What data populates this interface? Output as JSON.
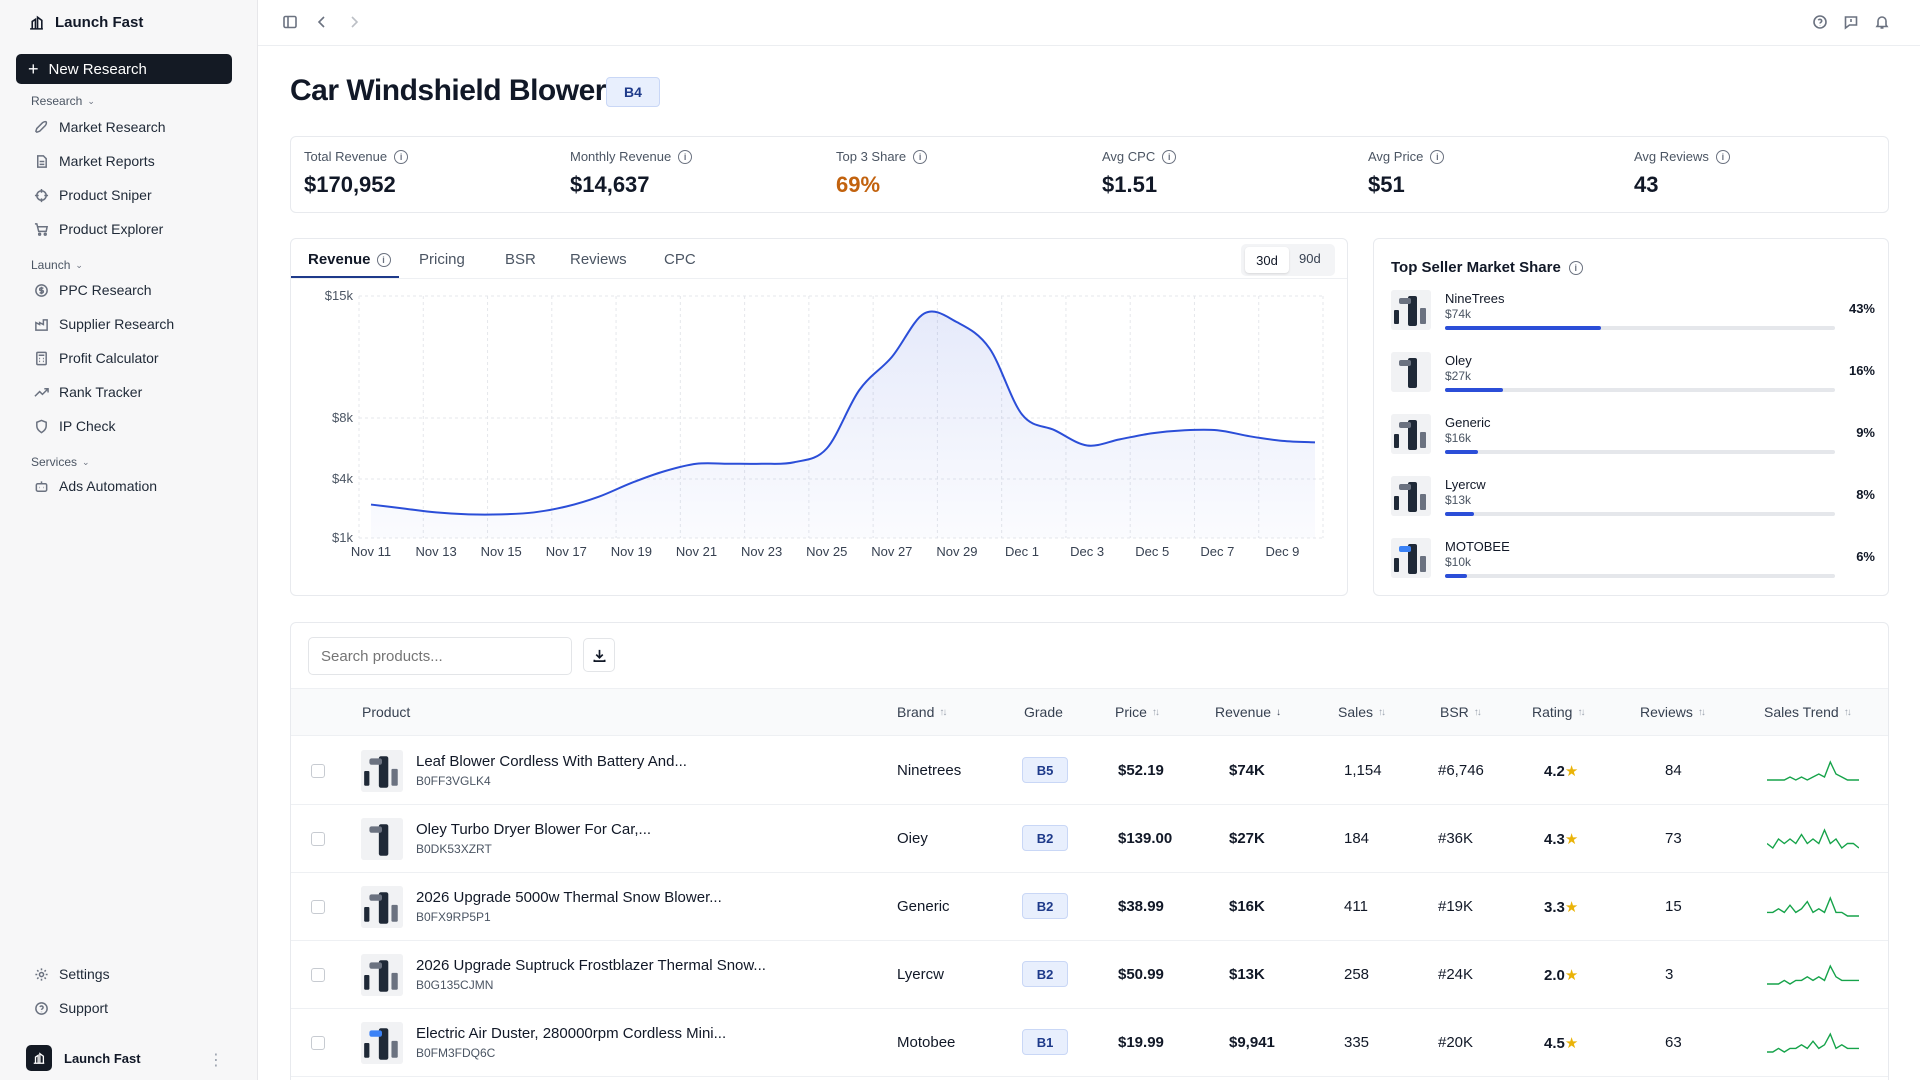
{
  "app": {
    "name": "Launch Fast"
  },
  "sidebar": {
    "new_research": "New Research",
    "sections": [
      {
        "label": "Research",
        "items": [
          "Market Research",
          "Market Reports",
          "Product Sniper",
          "Product Explorer"
        ]
      },
      {
        "label": "Launch",
        "items": [
          "PPC Research",
          "Supplier Research",
          "Profit Calculator",
          "Rank Tracker",
          "IP Check"
        ]
      },
      {
        "label": "Services",
        "items": [
          "Ads Automation"
        ]
      }
    ],
    "footer": [
      "Settings",
      "Support"
    ],
    "user": "Launch Fast"
  },
  "header": {
    "title": "Car Windshield Blower",
    "grade": "B4"
  },
  "metrics": [
    {
      "label": "Total Revenue",
      "value": "$170,952"
    },
    {
      "label": "Monthly Revenue",
      "value": "$14,637"
    },
    {
      "label": "Top 3 Share",
      "value": "69%",
      "color": "#c2620e"
    },
    {
      "label": "Avg CPC",
      "value": "$1.51"
    },
    {
      "label": "Avg Price",
      "value": "$51"
    },
    {
      "label": "Avg Reviews",
      "value": "43"
    }
  ],
  "chart_tabs": [
    "Revenue",
    "Pricing",
    "BSR",
    "Reviews",
    "CPC"
  ],
  "range": {
    "options": [
      "30d",
      "90d"
    ],
    "selected": "30d"
  },
  "chart_data": {
    "type": "area",
    "title": "",
    "xlabel": "",
    "ylabel": "",
    "y_ticks": [
      {
        "label": "$15k",
        "value": 15000
      },
      {
        "label": "$8k",
        "value": 8000
      },
      {
        "label": "$4k",
        "value": 4000
      },
      {
        "label": "$1k",
        "value": 1000
      }
    ],
    "x_tick_labels": [
      "Nov 11",
      "Nov 13",
      "Nov 15",
      "Nov 17",
      "Nov 19",
      "Nov 21",
      "Nov 23",
      "Nov 25",
      "Nov 27",
      "Nov 29",
      "Dec 1",
      "Dec 3",
      "Dec 5",
      "Dec 7",
      "Dec 9"
    ],
    "x": [
      "Nov 11",
      "Nov 12",
      "Nov 13",
      "Nov 14",
      "Nov 15",
      "Nov 16",
      "Nov 17",
      "Nov 18",
      "Nov 19",
      "Nov 20",
      "Nov 21",
      "Nov 22",
      "Nov 23",
      "Nov 24",
      "Nov 25",
      "Nov 26",
      "Nov 27",
      "Nov 28",
      "Nov 29",
      "Nov 30",
      "Dec 1",
      "Dec 2",
      "Dec 3",
      "Dec 4",
      "Dec 5",
      "Dec 6",
      "Dec 7",
      "Dec 8",
      "Dec 9",
      "Dec 10"
    ],
    "values": [
      2700,
      2500,
      2300,
      2200,
      2200,
      2300,
      2600,
      3100,
      3800,
      4500,
      5000,
      5000,
      5000,
      5100,
      6000,
      9600,
      11500,
      14000,
      13500,
      12000,
      8200,
      7200,
      6200,
      6600,
      7000,
      7200,
      7200,
      6800,
      6500,
      6400
    ],
    "color": "#2b4ed8",
    "grid": true
  },
  "top_sellers": {
    "title": "Top Seller Market Share",
    "items": [
      {
        "name": "NineTrees",
        "revenue": "$74k",
        "share_label": "43%",
        "share": 0.43
      },
      {
        "name": "Oley",
        "revenue": "$27k",
        "share_label": "16%",
        "share": 0.16
      },
      {
        "name": "Generic",
        "revenue": "$16k",
        "share_label": "9%",
        "share": 0.09
      },
      {
        "name": "Lyercw",
        "revenue": "$13k",
        "share_label": "8%",
        "share": 0.08
      },
      {
        "name": "MOTOBEE",
        "revenue": "$10k",
        "share_label": "6%",
        "share": 0.06
      }
    ]
  },
  "table": {
    "search_placeholder": "Search products...",
    "columns": [
      "Product",
      "Brand",
      "Grade",
      "Price",
      "Revenue",
      "Sales",
      "BSR",
      "Rating",
      "Reviews",
      "Sales Trend"
    ],
    "rows": [
      {
        "name": "Leaf Blower Cordless With Battery And...",
        "asin": "B0FF3VGLK4",
        "brand": "Ninetrees",
        "grade": "B5",
        "price": "$52.19",
        "revenue": "$74K",
        "sales": "1,154",
        "bsr": "#6,746",
        "rating": "4.2",
        "reviews": "84",
        "trend": [
          2,
          2,
          2,
          2,
          3,
          2,
          3,
          2,
          3,
          4,
          3,
          8,
          4,
          3,
          2,
          2,
          2
        ]
      },
      {
        "name": "Oley Turbo Dryer Blower For Car,...",
        "asin": "B0DK53XZRT",
        "brand": "Oiey",
        "grade": "B2",
        "price": "$139.00",
        "revenue": "$27K",
        "sales": "184",
        "bsr": "#36K",
        "rating": "4.3",
        "reviews": "73",
        "trend": [
          3,
          2,
          4,
          3,
          4,
          3,
          5,
          3,
          4,
          3,
          6,
          3,
          4,
          2,
          3,
          3,
          2
        ]
      },
      {
        "name": "2026 Upgrade 5000w Thermal Snow Blower...",
        "asin": "B0FX9RP5P1",
        "brand": "Generic",
        "grade": "B2",
        "price": "$38.99",
        "revenue": "$16K",
        "sales": "411",
        "bsr": "#19K",
        "rating": "3.3",
        "reviews": "15",
        "trend": [
          3,
          3,
          4,
          3,
          5,
          3,
          4,
          6,
          3,
          4,
          3,
          7,
          3,
          3,
          2,
          2,
          2
        ]
      },
      {
        "name": "2026 Upgrade Suptruck Frostblazer Thermal Snow...",
        "asin": "B0G135CJMN",
        "brand": "Lyercw",
        "grade": "B2",
        "price": "$50.99",
        "revenue": "$13K",
        "sales": "258",
        "bsr": "#24K",
        "rating": "2.0",
        "reviews": "3",
        "trend": [
          2,
          2,
          2,
          3,
          2,
          3,
          3,
          4,
          3,
          4,
          3,
          7,
          4,
          3,
          3,
          3,
          3
        ]
      },
      {
        "name": "Electric Air Duster, 280000rpm Cordless Mini...",
        "asin": "B0FM3FDQ6C",
        "brand": "Motobee",
        "grade": "B1",
        "price": "$19.99",
        "revenue": "$9,941",
        "sales": "335",
        "bsr": "#20K",
        "rating": "4.5",
        "reviews": "63",
        "trend": [
          2,
          2,
          3,
          2,
          3,
          3,
          4,
          3,
          5,
          3,
          4,
          7,
          3,
          4,
          3,
          3,
          3
        ]
      }
    ]
  }
}
